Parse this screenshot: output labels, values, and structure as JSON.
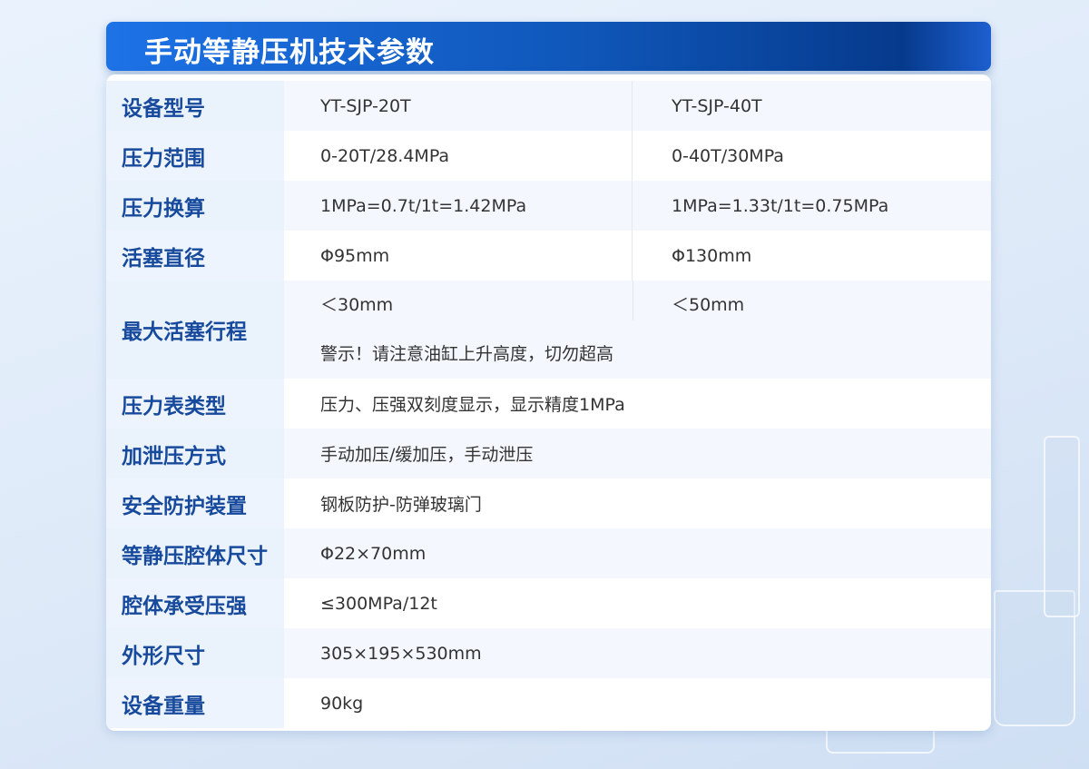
{
  "title": "手动等静压机技术参数",
  "rows": [
    {
      "label": "设备型号",
      "col1": "YT-SJP-20T",
      "col2": "YT-SJP-40T"
    },
    {
      "label": "压力范围",
      "col1": "0-20T/28.4MPa",
      "col2": "0-40T/30MPa"
    },
    {
      "label": "压力换算",
      "col1": "1MPa=0.7t/1t=1.42MPa",
      "col2": "1MPa=1.33t/1t=0.75MPa"
    },
    {
      "label": "活塞直径",
      "col1": "Φ95mm",
      "col2": "Φ130mm"
    },
    {
      "label": "最大活塞行程",
      "col1": "＜30mm",
      "col2": "＜50mm",
      "note": "警示！请注意油缸上升高度，切勿超高"
    },
    {
      "label": "压力表类型",
      "value": "压力、压强双刻度显示，显示精度1MPa"
    },
    {
      "label": "加泄压方式",
      "value": "手动加压/缓加压，手动泄压"
    },
    {
      "label": "安全防护装置",
      "value": "钢板防护-防弹玻璃门"
    },
    {
      "label": "等静压腔体尺寸",
      "value": "Φ22×70mm"
    },
    {
      "label": "腔体承受压强",
      "value": "≤300MPa/12t"
    },
    {
      "label": "外形尺寸",
      "value": "305×195×530mm"
    },
    {
      "label": "设备重量",
      "value": "90kg"
    }
  ],
  "colors": {
    "header_start": "#1d72e6",
    "header_end": "#063a8c",
    "label": "#174a9c",
    "text": "#333333"
  }
}
